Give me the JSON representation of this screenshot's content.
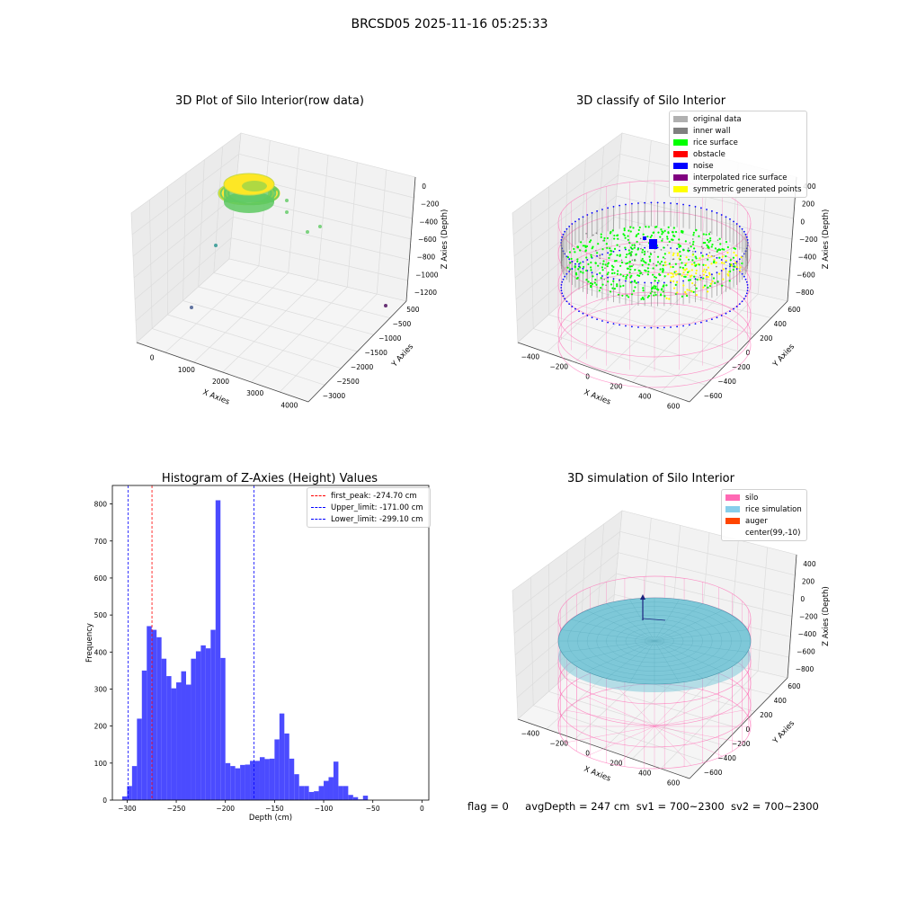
{
  "figure": {
    "suptitle": "BRCSD05 2025-11-16 05:25:33"
  },
  "chart_data": [
    {
      "type": "scatter3d",
      "title": "3D Plot of Silo Interior(row data)",
      "xlabel": "X Axies",
      "ylabel": "Y Axies",
      "zlabel": "Z Axies (Depth)",
      "x_ticks": [
        "0",
        "1000",
        "2000",
        "3000",
        "4000"
      ],
      "y_ticks": [
        "500",
        "−500",
        "−1000",
        "−1500",
        "−2000",
        "−2500",
        "−3000"
      ],
      "z_ticks": [
        "0",
        "−200",
        "−400",
        "−600",
        "−800",
        "−1000",
        "−1200"
      ],
      "colormap": [
        "#fde725",
        "#5ec962",
        "#21918c",
        "#3b528b",
        "#440154"
      ]
    },
    {
      "type": "scatter3d",
      "title": "3D classify of Silo Interior",
      "xlabel": "X Axies",
      "ylabel": "Y Axies",
      "zlabel": "Z Axies (Depth)",
      "x_ticks": [
        "−400",
        "−200",
        "0",
        "200",
        "400",
        "600"
      ],
      "y_ticks": [
        "600",
        "400",
        "200",
        "0",
        "−200",
        "−400",
        "−600"
      ],
      "z_ticks": [
        "400",
        "200",
        "0",
        "−200",
        "−400",
        "−600",
        "−800"
      ],
      "legend": [
        {
          "label": "original data",
          "color": "#b0b0b0"
        },
        {
          "label": "inner wall",
          "color": "#808080"
        },
        {
          "label": "rice surface",
          "color": "#00ff00"
        },
        {
          "label": "obstacle",
          "color": "#ff0000"
        },
        {
          "label": "noise",
          "color": "#0000ff"
        },
        {
          "label": "interpolated rice surface",
          "color": "#800080"
        },
        {
          "label": "symmetric generated points",
          "color": "#ffff00"
        }
      ],
      "silo_color": "#ff69b4"
    },
    {
      "type": "bar",
      "title": "Histogram of Z-Axies (Height) Values",
      "xlabel": "Depth (cm)",
      "ylabel": "Frequency",
      "xlim": [
        -315,
        7
      ],
      "ylim": [
        0,
        850
      ],
      "x_ticks": [
        -300,
        -250,
        -200,
        -150,
        -100,
        -50,
        0
      ],
      "y_ticks": [
        0,
        100,
        200,
        300,
        400,
        500,
        600,
        700,
        800
      ],
      "bin_width": 5,
      "bins_start": [
        -310,
        -305,
        -300,
        -295,
        -290,
        -285,
        -280,
        -275,
        -270,
        -265,
        -260,
        -255,
        -250,
        -245,
        -240,
        -235,
        -230,
        -225,
        -220,
        -215,
        -210,
        -205,
        -200,
        -195,
        -190,
        -185,
        -180,
        -175,
        -170,
        -165,
        -160,
        -155,
        -150,
        -145,
        -140,
        -135,
        -130,
        -125,
        -120,
        -115,
        -110,
        -105,
        -100,
        -95,
        -90,
        -85,
        -80,
        -75,
        -70,
        -65,
        -60,
        -55,
        -50,
        -45,
        -40,
        -35,
        -30,
        -25,
        -20,
        -15,
        -10,
        -5,
        0
      ],
      "values": [
        0,
        10,
        38,
        92,
        220,
        350,
        470,
        460,
        440,
        382,
        335,
        302,
        318,
        348,
        312,
        382,
        402,
        418,
        410,
        460,
        810,
        384,
        100,
        92,
        86,
        95,
        96,
        106,
        106,
        116,
        111,
        112,
        164,
        234,
        180,
        112,
        70,
        38,
        38,
        22,
        24,
        38,
        52,
        62,
        104,
        38,
        38,
        14,
        8,
        2,
        12,
        0,
        0,
        0,
        0,
        0,
        0,
        0,
        0,
        0,
        0,
        0,
        0
      ],
      "bar_color": "#4b4bff",
      "vlines": [
        {
          "label": "first_peak: -274.70 cm",
          "x": -274.7,
          "color": "#ff0000"
        },
        {
          "label": "Upper_limit: -171.00 cm",
          "x": -171.0,
          "color": "#0000ff"
        },
        {
          "label": "Lower_limit: -299.10 cm",
          "x": -299.1,
          "color": "#0000ff"
        }
      ],
      "legend_position": "top-right"
    },
    {
      "type": "surface3d",
      "title": "3D simulation of Silo Interior",
      "xlabel": "X Axies",
      "ylabel": "Y Axies",
      "zlabel": "Z Axies (Depth)",
      "x_ticks": [
        "−400",
        "−200",
        "0",
        "200",
        "400",
        "600"
      ],
      "y_ticks": [
        "600",
        "400",
        "200",
        "0",
        "−200",
        "−400",
        "−600"
      ],
      "z_ticks": [
        "400",
        "200",
        "0",
        "−200",
        "−400",
        "−600",
        "−800"
      ],
      "legend": [
        {
          "label": "silo",
          "color": "#ff69b4"
        },
        {
          "label": "rice simulation",
          "color": "#87ceeb"
        },
        {
          "label": "auger",
          "color": "#ff4500"
        },
        {
          "label": "center(99,-10)",
          "color": ""
        }
      ],
      "surface_color": "#7ec8d8"
    }
  ],
  "footer": {
    "flag": "flag = 0",
    "avg": "avgDepth = 247 cm",
    "sv1": "sv1 = 700~2300",
    "sv2": "sv2 = 700~2300"
  }
}
